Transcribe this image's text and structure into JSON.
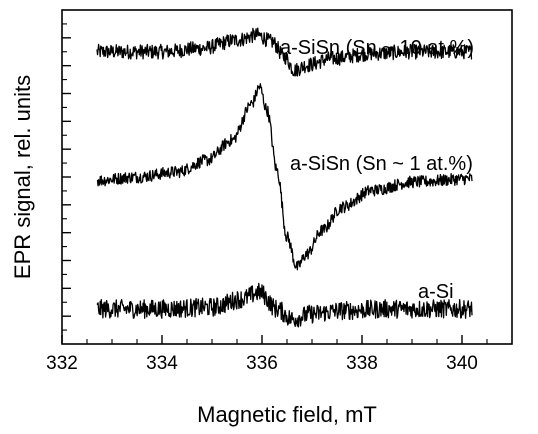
{
  "chart_data": {
    "type": "line",
    "title": "",
    "xlabel": "Magnetic field, mT",
    "ylabel": "EPR signal, rel. units",
    "xlim": [
      332,
      341
    ],
    "ylim": [
      0,
      10
    ],
    "x_ticks": [
      332,
      334,
      336,
      338,
      340
    ],
    "x_tick_labels": [
      "332",
      "334",
      "336",
      "338",
      "340"
    ],
    "y_tick_labels_shown": false,
    "grid": false,
    "legend": "none",
    "line_color": "#000000",
    "series": [
      {
        "name": "a-SiSn (Sn ~ 10 at.%)",
        "points": [
          [
            332.7,
            8.75
          ],
          [
            334.0,
            8.75
          ],
          [
            334.8,
            8.85
          ],
          [
            335.5,
            9.1
          ],
          [
            335.9,
            9.25
          ],
          [
            336.2,
            9.05
          ],
          [
            336.45,
            8.6
          ],
          [
            336.65,
            8.2
          ],
          [
            336.9,
            8.35
          ],
          [
            337.4,
            8.55
          ],
          [
            338.2,
            8.7
          ],
          [
            339.0,
            8.75
          ],
          [
            340.2,
            8.75
          ]
        ]
      },
      {
        "name": "a-SiSn (Sn ~ 1 at.%)",
        "points": [
          [
            332.7,
            4.9
          ],
          [
            333.5,
            5.0
          ],
          [
            334.3,
            5.15
          ],
          [
            334.9,
            5.5
          ],
          [
            335.4,
            6.1
          ],
          [
            335.8,
            7.2
          ],
          [
            335.95,
            7.7
          ],
          [
            336.1,
            7.0
          ],
          [
            336.3,
            5.2
          ],
          [
            336.5,
            3.2
          ],
          [
            336.7,
            2.3
          ],
          [
            336.9,
            2.7
          ],
          [
            337.2,
            3.4
          ],
          [
            337.6,
            4.1
          ],
          [
            338.2,
            4.6
          ],
          [
            339.0,
            4.85
          ],
          [
            340.2,
            4.95
          ]
        ]
      },
      {
        "name": "a-Si",
        "points": [
          [
            332.7,
            1.05
          ],
          [
            334.0,
            1.05
          ],
          [
            335.0,
            1.1
          ],
          [
            335.6,
            1.35
          ],
          [
            335.95,
            1.55
          ],
          [
            336.3,
            1.05
          ],
          [
            336.6,
            0.75
          ],
          [
            337.0,
            0.9
          ],
          [
            337.6,
            1.0
          ],
          [
            338.5,
            1.05
          ],
          [
            340.2,
            1.05
          ]
        ]
      }
    ]
  }
}
